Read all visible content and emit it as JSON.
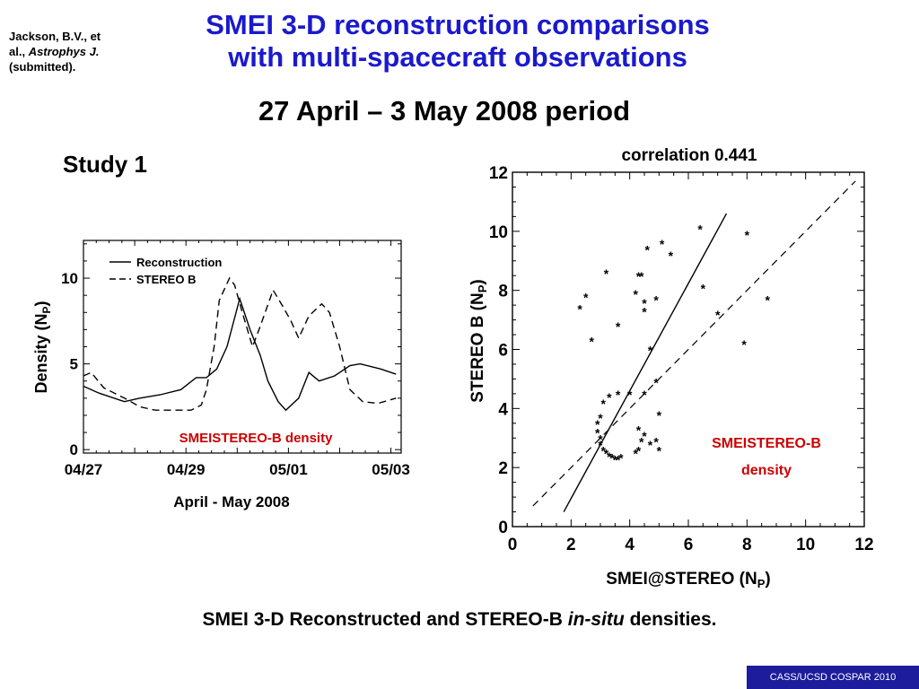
{
  "header": {
    "citation_line1": "Jackson, B.V., et",
    "citation_line2_prefix": "al., ",
    "citation_journal": "Astrophys J.",
    "citation_line3": "(submitted).",
    "title_line1": "SMEI 3-D reconstruction comparisons",
    "title_line2": "with multi-spacecraft observations",
    "subtitle": "27 April – 3 May 2008 period",
    "study_label": "Study 1"
  },
  "caption": {
    "prefix": "SMEI 3-D Reconstructed and STEREO-B ",
    "italic": "in-situ",
    "suffix": " densities."
  },
  "footer": "CASS/UCSD COSPAR 2010",
  "colors": {
    "title": "#1a1acc",
    "annotation": "#cc0000",
    "footer_bg": "#1c1c9c"
  },
  "chart_data": [
    {
      "type": "line",
      "xlabel": "April - May 2008",
      "ylabel": "Density (N",
      "ylabel_sub": "P",
      "ylabel_close": ")",
      "xlim": [
        0,
        6.2
      ],
      "ylim": [
        -0.2,
        12.2
      ],
      "xticks": [
        0,
        2,
        4,
        6
      ],
      "xtick_labels": [
        "04/27",
        "04/29",
        "05/01",
        "05/03"
      ],
      "yticks": [
        0,
        5,
        10
      ],
      "ytick_labels": [
        "0",
        "5",
        "10"
      ],
      "legend_position": "top-left",
      "annotation": "SMEISTEREO-B density",
      "series": [
        {
          "name": "Reconstruction",
          "style": "solid",
          "points": [
            [
              0,
              3.7
            ],
            [
              0.3,
              3.3
            ],
            [
              0.7,
              2.9
            ],
            [
              0.8,
              2.8
            ],
            [
              1.1,
              3.0
            ],
            [
              1.5,
              3.2
            ],
            [
              1.9,
              3.5
            ],
            [
              2.2,
              4.2
            ],
            [
              2.4,
              4.2
            ],
            [
              2.6,
              4.7
            ],
            [
              2.8,
              6.0
            ],
            [
              3.05,
              8.8
            ],
            [
              3.25,
              7.0
            ],
            [
              3.45,
              5.5
            ],
            [
              3.6,
              4.0
            ],
            [
              3.8,
              2.8
            ],
            [
              3.95,
              2.3
            ],
            [
              4.2,
              3.0
            ],
            [
              4.4,
              4.5
            ],
            [
              4.6,
              4.0
            ],
            [
              4.9,
              4.3
            ],
            [
              5.2,
              4.9
            ],
            [
              5.4,
              5.0
            ],
            [
              5.8,
              4.7
            ],
            [
              6.1,
              4.4
            ]
          ]
        },
        {
          "name": "STEREO B",
          "style": "dashed",
          "points": [
            [
              0,
              4.3
            ],
            [
              0.15,
              4.5
            ],
            [
              0.4,
              3.6
            ],
            [
              0.8,
              3.0
            ],
            [
              1.1,
              2.5
            ],
            [
              1.4,
              2.3
            ],
            [
              1.8,
              2.3
            ],
            [
              2.1,
              2.3
            ],
            [
              2.3,
              2.6
            ],
            [
              2.4,
              3.5
            ],
            [
              2.55,
              6.0
            ],
            [
              2.65,
              8.7
            ],
            [
              2.85,
              10.0
            ],
            [
              2.95,
              9.6
            ],
            [
              3.1,
              8.0
            ],
            [
              3.3,
              6.0
            ],
            [
              3.45,
              7.2
            ],
            [
              3.7,
              9.3
            ],
            [
              3.9,
              8.3
            ],
            [
              4.05,
              7.5
            ],
            [
              4.2,
              6.5
            ],
            [
              4.4,
              7.8
            ],
            [
              4.65,
              8.5
            ],
            [
              4.8,
              8.0
            ],
            [
              5.0,
              6.0
            ],
            [
              5.2,
              3.5
            ],
            [
              5.45,
              2.8
            ],
            [
              5.75,
              2.7
            ],
            [
              6.1,
              3.0
            ]
          ]
        }
      ]
    },
    {
      "type": "scatter",
      "title": "correlation 0.441",
      "xlabel": "SMEI@STEREO (N",
      "xlabel_sub": "P",
      "xlabel_close": ")",
      "ylabel": "STEREO B (N",
      "ylabel_sub": "P",
      "ylabel_close": ")",
      "xlim": [
        0,
        12
      ],
      "ylim": [
        0,
        12
      ],
      "xticks": [
        0,
        2,
        4,
        6,
        8,
        10,
        12
      ],
      "yticks": [
        0,
        2,
        4,
        6,
        8,
        10,
        12
      ],
      "annotation_line1": "SMEISTEREO-B",
      "annotation_line2": "density",
      "fit_line": [
        [
          1.75,
          0.5
        ],
        [
          7.3,
          10.6
        ]
      ],
      "identity_line": [
        [
          0.7,
          0.7
        ],
        [
          11.7,
          11.7
        ]
      ],
      "points": [
        [
          2.3,
          7.4
        ],
        [
          2.5,
          7.8
        ],
        [
          2.7,
          6.3
        ],
        [
          3.2,
          8.6
        ],
        [
          3.6,
          6.8
        ],
        [
          4.2,
          7.9
        ],
        [
          4.3,
          8.5
        ],
        [
          4.4,
          8.5
        ],
        [
          4.5,
          7.6
        ],
        [
          4.5,
          7.3
        ],
        [
          4.6,
          9.4
        ],
        [
          4.9,
          7.7
        ],
        [
          5.1,
          9.6
        ],
        [
          5.4,
          9.2
        ],
        [
          6.4,
          10.1
        ],
        [
          6.5,
          8.1
        ],
        [
          7.0,
          7.2
        ],
        [
          7.9,
          6.2
        ],
        [
          8.0,
          9.9
        ],
        [
          8.7,
          7.7
        ],
        [
          4.5,
          4.5
        ],
        [
          4.7,
          6.0
        ],
        [
          4.9,
          4.9
        ],
        [
          5.0,
          3.8
        ],
        [
          4.9,
          2.9
        ],
        [
          5.0,
          2.6
        ],
        [
          4.7,
          2.8
        ],
        [
          4.5,
          3.1
        ],
        [
          4.3,
          3.3
        ],
        [
          4.4,
          2.9
        ],
        [
          4.3,
          2.6
        ],
        [
          4.2,
          2.5
        ],
        [
          3.1,
          4.2
        ],
        [
          3.3,
          4.4
        ],
        [
          3.6,
          4.5
        ],
        [
          4.0,
          4.5
        ],
        [
          3.0,
          3.7
        ],
        [
          2.9,
          3.5
        ],
        [
          2.9,
          3.2
        ],
        [
          3.0,
          3.0
        ],
        [
          3.0,
          2.8
        ],
        [
          3.1,
          2.6
        ],
        [
          3.2,
          2.5
        ],
        [
          3.3,
          2.4
        ],
        [
          3.4,
          2.35
        ],
        [
          3.5,
          2.3
        ],
        [
          3.6,
          2.3
        ],
        [
          3.7,
          2.35
        ]
      ]
    }
  ]
}
